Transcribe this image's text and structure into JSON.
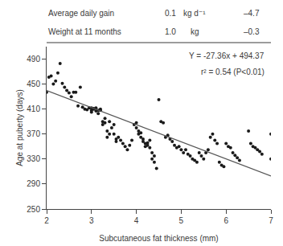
{
  "chart_data": {
    "type": "scatter",
    "table": [
      [
        "Average daily gain",
        "0.1",
        "kg d⁻¹",
        "–4.7"
      ],
      [
        "Weight at 11 months",
        "1.0",
        "kg",
        "–0.3"
      ]
    ],
    "annotations": [
      "Y = -27.36x + 494.37",
      "r² = 0.54 (P<0.01)"
    ],
    "xlabel": "Subcutaneous fat thickness (mm)",
    "ylabel": "Age at puberty (days)",
    "xlim": [
      2,
      7
    ],
    "ylim": [
      250,
      510
    ],
    "xticks": [
      2,
      3,
      4,
      5,
      6,
      7
    ],
    "yticks": [
      250,
      290,
      330,
      370,
      410,
      450,
      490
    ],
    "grid": false,
    "series": [
      {
        "type": "scatter",
        "marker": "circle",
        "color": "#1a1a1a",
        "x": [
          2.0,
          2.05,
          2.1,
          2.15,
          2.2,
          2.25,
          2.3,
          2.35,
          2.4,
          2.45,
          2.5,
          2.55,
          2.6,
          2.65,
          2.7,
          2.75,
          2.8,
          2.85,
          2.9,
          2.95,
          3.0,
          3.0,
          3.0,
          3.05,
          3.05,
          3.1,
          3.1,
          3.15,
          3.15,
          3.2,
          3.2,
          3.25,
          3.25,
          3.3,
          3.3,
          3.35,
          3.35,
          3.4,
          3.4,
          3.45,
          3.5,
          3.5,
          3.55,
          3.55,
          3.6,
          3.65,
          3.7,
          3.75,
          3.8,
          3.85,
          3.9,
          3.95,
          4.0,
          4.0,
          4.05,
          4.05,
          4.1,
          4.1,
          4.15,
          4.15,
          4.2,
          4.2,
          4.25,
          4.25,
          4.3,
          4.3,
          4.35,
          4.35,
          4.4,
          4.4,
          4.45,
          4.5,
          4.55,
          4.6,
          4.65,
          4.7,
          4.75,
          4.8,
          4.85,
          4.9,
          4.95,
          5.0,
          5.05,
          5.1,
          5.15,
          5.2,
          5.25,
          5.3,
          5.35,
          5.4,
          5.45,
          5.5,
          5.55,
          5.6,
          5.65,
          5.7,
          5.75,
          5.8,
          5.85,
          5.9,
          5.95,
          6.0,
          6.05,
          6.1,
          6.15,
          6.2,
          6.25,
          6.3,
          6.5,
          6.55,
          6.6,
          6.65,
          6.7,
          6.75,
          6.8,
          7.0,
          7.0
        ],
        "values": [
          437,
          461,
          463,
          450,
          455,
          468,
          483,
          451,
          445,
          440,
          436,
          430,
          437,
          437,
          415,
          445,
          413,
          410,
          409,
          412,
          412,
          408,
          405,
          411,
          410,
          407,
          412,
          408,
          403,
          410,
          408,
          385,
          390,
          395,
          388,
          365,
          375,
          370,
          390,
          380,
          385,
          370,
          362,
          358,
          365,
          360,
          355,
          350,
          345,
          352,
          360,
          385,
          388,
          380,
          375,
          370,
          372,
          365,
          362,
          358,
          355,
          350,
          356,
          352,
          360,
          348,
          340,
          330,
          335,
          325,
          315,
          425,
          390,
          388,
          365,
          368,
          362,
          358,
          352,
          348,
          350,
          345,
          340,
          345,
          338,
          335,
          330,
          328,
          325,
          340,
          335,
          330,
          340,
          345,
          365,
          370,
          360,
          355,
          325,
          320,
          318,
          355,
          350,
          348,
          340,
          336,
          332,
          328,
          375,
          355,
          350,
          348,
          345,
          342,
          338,
          370,
          330
        ]
      },
      {
        "type": "line",
        "line_style": "solid",
        "color": "#555555",
        "x": [
          2,
          7
        ],
        "values": [
          439.65,
          302.85
        ]
      }
    ]
  }
}
